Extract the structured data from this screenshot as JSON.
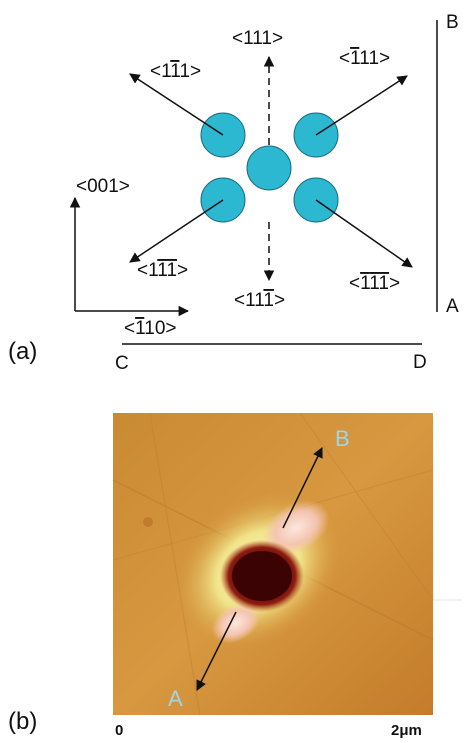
{
  "panel_a": {
    "label": "(a)",
    "directions": {
      "top": "<111>",
      "top_left": {
        "pre": "<1",
        "bar": "1",
        "post": "1>"
      },
      "top_right": {
        "pre": "<",
        "bar": "1",
        "post": "11>"
      },
      "bottom_left": {
        "pre": "<1",
        "bar1": "1",
        "bar2": "1",
        "post": ">"
      },
      "bottom": {
        "pre": "<11",
        "bar": "1",
        "post": ">"
      },
      "bottom_right": {
        "pre": "<",
        "bar1": "1",
        "bar2": "1",
        "mid": "1",
        "post": ">"
      },
      "axis_vertical": "<001>",
      "axis_horizontal": {
        "pre": "<",
        "bar": "1",
        "post": "10>"
      }
    },
    "line_labels": {
      "B": "B",
      "A": "A",
      "C": "C",
      "D": "D"
    },
    "atom_color": "#2bb8d0"
  },
  "panel_b": {
    "label": "(b)",
    "point_A": "A",
    "point_B": "B",
    "scale_start": "0",
    "scale_end": "2μm"
  }
}
